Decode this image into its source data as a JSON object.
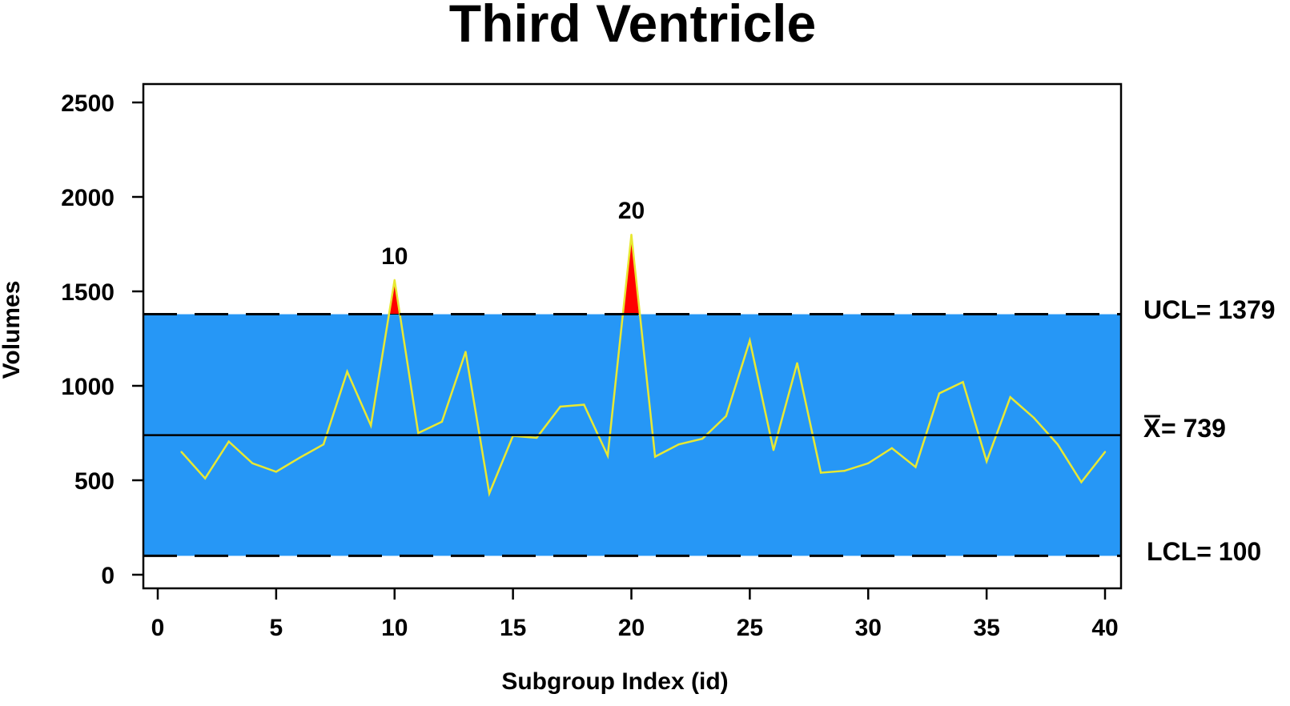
{
  "chart_data": {
    "type": "line",
    "title": "Third Ventricle",
    "xlabel": "Subgroup Index (id)",
    "ylabel": "Volumes",
    "xlim": [
      0,
      40
    ],
    "ylim": [
      0,
      2600
    ],
    "x_ticks": [
      0,
      5,
      10,
      15,
      20,
      25,
      30,
      35,
      40
    ],
    "y_ticks": [
      0,
      500,
      1000,
      1500,
      2000,
      2500
    ],
    "x": [
      1,
      2,
      3,
      4,
      5,
      6,
      7,
      8,
      9,
      10,
      11,
      12,
      13,
      14,
      15,
      16,
      17,
      18,
      19,
      20,
      21,
      22,
      23,
      24,
      25,
      26,
      27,
      28,
      29,
      30,
      31,
      32,
      33,
      34,
      35,
      36,
      37,
      38,
      39,
      40
    ],
    "values": [
      650,
      510,
      705,
      590,
      545,
      620,
      690,
      1075,
      790,
      1560,
      750,
      810,
      1180,
      430,
      735,
      725,
      890,
      900,
      630,
      1800,
      625,
      690,
      720,
      840,
      1240,
      660,
      1120,
      540,
      550,
      590,
      670,
      570,
      960,
      1020,
      600,
      940,
      830,
      690,
      490,
      650
    ],
    "control_limits": {
      "ucl": 1379,
      "center": 739,
      "lcl": 100,
      "ucl_label": "UCL= 1379",
      "center_label": "= 739",
      "center_symbol": "X",
      "lcl_label": "LCL= 100"
    },
    "outliers": [
      {
        "x": 10,
        "label": "10"
      },
      {
        "x": 20,
        "label": "20"
      }
    ],
    "colors": {
      "band": "#2697f6",
      "series": "#e8e832",
      "outlier": "#ff0000",
      "lines": "#000000"
    },
    "grid": false
  }
}
